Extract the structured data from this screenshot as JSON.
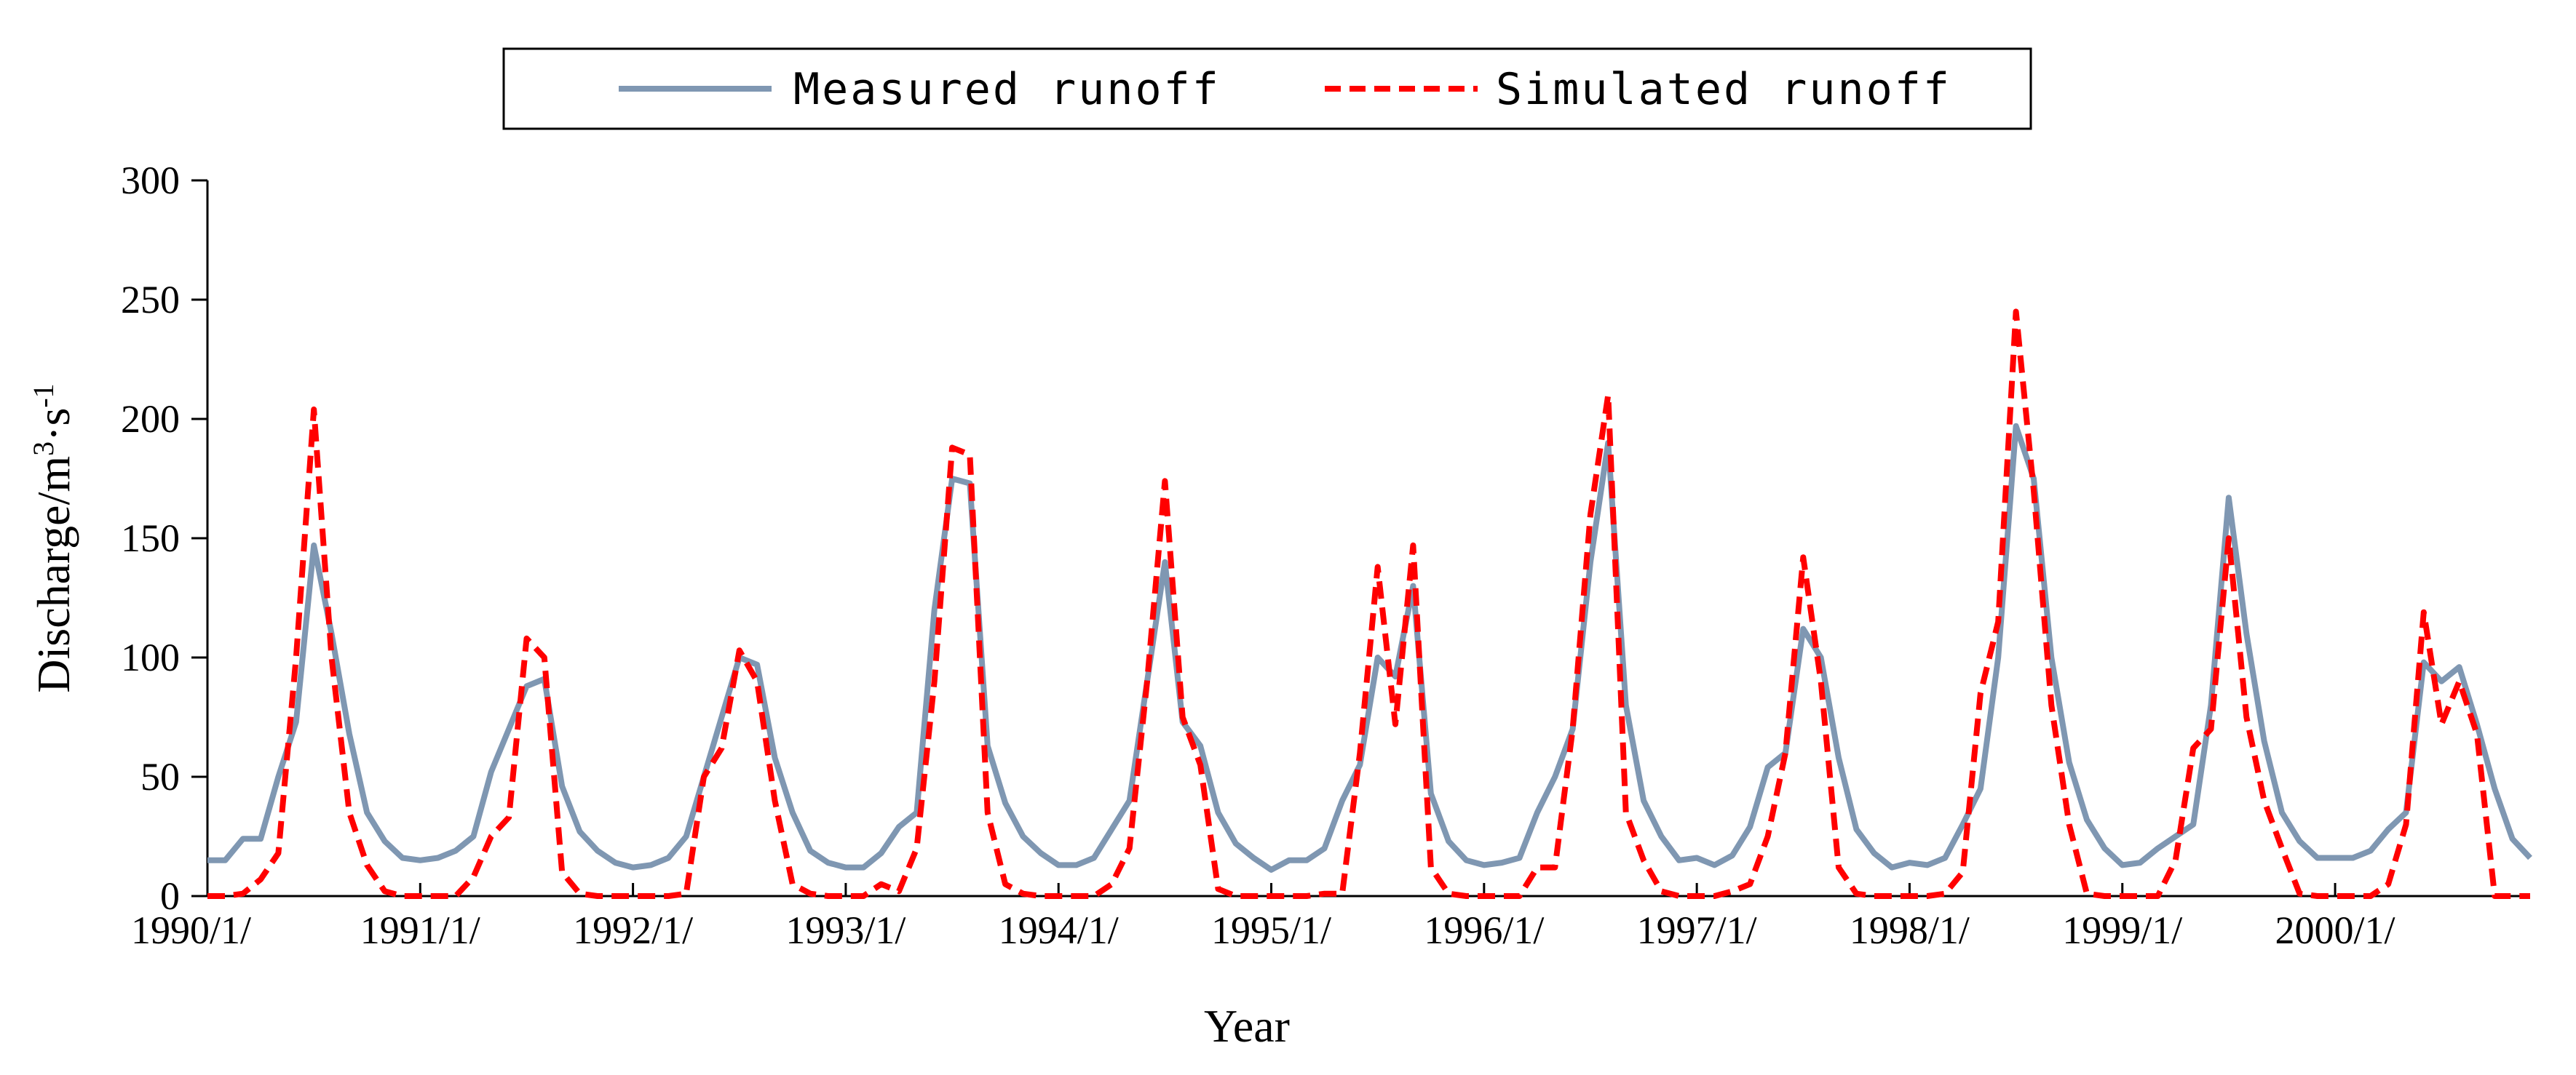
{
  "chart_data": {
    "type": "line",
    "xlabel": "Year",
    "ylabel_main": "Discharge/m",
    "ylabel_sup1": "3",
    "ylabel_mid": "·s",
    "ylabel_sup2": "-1",
    "ylim": [
      0,
      300
    ],
    "yticks": [
      0,
      50,
      100,
      150,
      200,
      250,
      300
    ],
    "ytick_labels": [
      "0",
      "50",
      "100",
      "150",
      "200",
      "250",
      "300"
    ],
    "xtick_labels": [
      "1990/1/",
      "1991/1/",
      "1992/1/",
      "1993/1/",
      "1994/1/",
      "1995/1/",
      "1996/1/",
      "1997/1/",
      "1998/1/",
      "1999/1/",
      "2000/1/"
    ],
    "x_start": "1990/1",
    "months": 132,
    "legend_position": "top-center",
    "grid": false,
    "colors": {
      "measured": "#7f97b2",
      "simulated": "#ff0000",
      "axis": "#000000"
    },
    "series": [
      {
        "name": "Measured runoff",
        "style": "solid",
        "values": [
          15,
          15,
          24,
          24,
          50,
          73,
          147,
          110,
          68,
          35,
          23,
          16,
          15,
          16,
          19,
          25,
          52,
          70,
          88,
          91,
          46,
          27,
          19,
          14,
          12,
          13,
          16,
          25,
          50,
          75,
          100,
          97,
          58,
          35,
          19,
          14,
          12,
          12,
          18,
          29,
          35,
          120,
          175,
          173,
          63,
          39,
          25,
          18,
          13,
          13,
          16,
          28,
          40,
          90,
          140,
          73,
          63,
          35,
          22,
          16,
          11,
          15,
          15,
          20,
          40,
          55,
          100,
          92,
          130,
          43,
          23,
          15,
          13,
          14,
          16,
          35,
          50,
          70,
          140,
          190,
          80,
          40,
          25,
          15,
          16,
          13,
          17,
          29,
          54,
          60,
          112,
          100,
          58,
          28,
          18,
          12,
          14,
          13,
          16,
          30,
          45,
          100,
          197,
          175,
          100,
          56,
          32,
          20,
          13,
          14,
          20,
          25,
          30,
          80,
          167,
          110,
          65,
          35,
          23,
          16,
          16,
          16,
          19,
          28,
          35,
          98,
          90,
          96,
          72,
          45,
          24,
          16
        ]
      },
      {
        "name": "Simulated runoff",
        "style": "dashed",
        "values": [
          0,
          0,
          1,
          7,
          18,
          100,
          204,
          100,
          35,
          13,
          2,
          0,
          0,
          0,
          0,
          8,
          25,
          33,
          108,
          100,
          10,
          1,
          0,
          0,
          0,
          0,
          0,
          1,
          50,
          62,
          103,
          90,
          40,
          5,
          1,
          0,
          0,
          0,
          5,
          2,
          20,
          90,
          188,
          185,
          35,
          5,
          1,
          0,
          0,
          0,
          0,
          5,
          20,
          90,
          174,
          75,
          55,
          3,
          0,
          0,
          0,
          0,
          0,
          1,
          1,
          60,
          138,
          72,
          147,
          12,
          1,
          0,
          0,
          0,
          0,
          12,
          12,
          70,
          160,
          210,
          35,
          15,
          2,
          0,
          0,
          0,
          2,
          5,
          25,
          60,
          142,
          90,
          12,
          1,
          0,
          0,
          0,
          0,
          1,
          10,
          85,
          115,
          245,
          170,
          80,
          30,
          1,
          0,
          0,
          0,
          0,
          15,
          62,
          70,
          150,
          75,
          40,
          20,
          1,
          0,
          0,
          0,
          0,
          5,
          30,
          119,
          72,
          90,
          68,
          0,
          0,
          0
        ]
      }
    ]
  }
}
